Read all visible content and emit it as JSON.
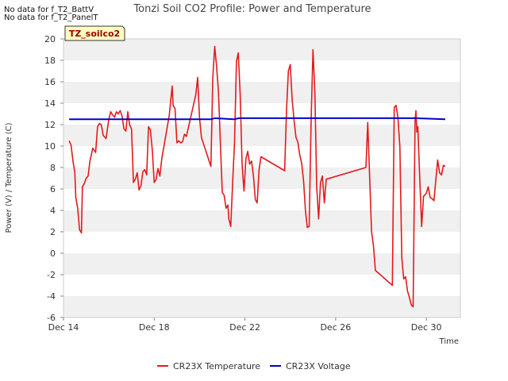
{
  "no_data_notes": [
    "No data for f_T2_BattV",
    "No data for f_T2_PanelT"
  ],
  "site_badge": "TZ_soilco2",
  "colors": {
    "temperature": "#e41a1c",
    "voltage": "#0000cc",
    "band": "#f0f0f0",
    "badge_bg": "#ffffc0",
    "badge_text": "#990000"
  },
  "chart_data": {
    "type": "line",
    "title": "Tonzi Soil CO2 Profile: Power and Temperature",
    "xlabel": "Time",
    "ylabel": "Power (V) / Temperature (C)",
    "ylim": [
      -6,
      20
    ],
    "yticks": [
      -6,
      -4,
      -2,
      0,
      2,
      4,
      6,
      8,
      10,
      12,
      14,
      16,
      18,
      20
    ],
    "xlim": [
      "Dec 14",
      "Dec 31 12:00"
    ],
    "xticks": [
      "Dec 14",
      "Dec 18",
      "Dec 22",
      "Dec 26",
      "Dec 30"
    ],
    "grid": "horizontal alternating bands",
    "legend_position": "bottom",
    "series": [
      {
        "name": "CR23X Temperature",
        "color": "#e41a1c",
        "points": [
          [
            "Dec 14 06:00",
            10.5
          ],
          [
            "Dec 14 08:00",
            10.1
          ],
          [
            "Dec 14 10:00",
            8.6
          ],
          [
            "Dec 14 12:00",
            7.5
          ],
          [
            "Dec 14 13:00",
            5.2
          ],
          [
            "Dec 14 15:00",
            4.2
          ],
          [
            "Dec 14 17:00",
            2.2
          ],
          [
            "Dec 14 19:00",
            1.9
          ],
          [
            "Dec 14 20:00",
            6.2
          ],
          [
            "Dec 14 22:00",
            6.5
          ],
          [
            "Dec 15 00:00",
            7.0
          ],
          [
            "Dec 15 02:00",
            7.2
          ],
          [
            "Dec 15 04:00",
            8.6
          ],
          [
            "Dec 15 07:00",
            9.8
          ],
          [
            "Dec 15 10:00",
            9.4
          ],
          [
            "Dec 15 12:00",
            11.8
          ],
          [
            "Dec 15 14:00",
            12.1
          ],
          [
            "Dec 15 16:00",
            12.0
          ],
          [
            "Dec 15 18:00",
            11.0
          ],
          [
            "Dec 15 21:00",
            10.7
          ],
          [
            "Dec 16 00:00",
            12.5
          ],
          [
            "Dec 16 02:00",
            13.2
          ],
          [
            "Dec 16 04:00",
            12.9
          ],
          [
            "Dec 16 06:00",
            12.7
          ],
          [
            "Dec 16 08:00",
            13.2
          ],
          [
            "Dec 16 10:00",
            13.0
          ],
          [
            "Dec 16 12:00",
            13.3
          ],
          [
            "Dec 16 14:00",
            12.8
          ],
          [
            "Dec 16 16:00",
            11.6
          ],
          [
            "Dec 16 18:00",
            11.4
          ],
          [
            "Dec 16 20:00",
            13.2
          ],
          [
            "Dec 16 22:00",
            12.0
          ],
          [
            "Dec 17 00:00",
            11.6
          ],
          [
            "Dec 17 02:00",
            6.6
          ],
          [
            "Dec 17 04:00",
            6.9
          ],
          [
            "Dec 17 06:00",
            7.5
          ],
          [
            "Dec 17 08:00",
            5.9
          ],
          [
            "Dec 17 10:00",
            6.3
          ],
          [
            "Dec 17 12:00",
            7.6
          ],
          [
            "Dec 17 14:00",
            7.8
          ],
          [
            "Dec 17 16:00",
            7.3
          ],
          [
            "Dec 17 18:00",
            11.8
          ],
          [
            "Dec 17 20:00",
            11.5
          ],
          [
            "Dec 17 22:00",
            9.6
          ],
          [
            "Dec 18 00:00",
            6.6
          ],
          [
            "Dec 18 02:00",
            6.9
          ],
          [
            "Dec 18 04:00",
            7.9
          ],
          [
            "Dec 18 06:00",
            7.2
          ],
          [
            "Dec 18 08:00",
            8.8
          ],
          [
            "Dec 18 16:00",
            12.9
          ],
          [
            "Dec 18 19:00",
            15.6
          ],
          [
            "Dec 18 20:00",
            13.8
          ],
          [
            "Dec 18 22:00",
            13.5
          ],
          [
            "Dec 19 00:00",
            10.3
          ],
          [
            "Dec 19 02:00",
            10.5
          ],
          [
            "Dec 19 04:00",
            10.3
          ],
          [
            "Dec 19 06:00",
            10.4
          ],
          [
            "Dec 19 08:00",
            11.1
          ],
          [
            "Dec 19 10:00",
            10.9
          ],
          [
            "Dec 19 20:00",
            14.8
          ],
          [
            "Dec 19 22:00",
            16.4
          ],
          [
            "Dec 20 00:00",
            12.6
          ],
          [
            "Dec 20 02:00",
            10.8
          ],
          [
            "Dec 20 12:00",
            8.1
          ],
          [
            "Dec 20 14:00",
            16.4
          ],
          [
            "Dec 20 16:00",
            19.3
          ],
          [
            "Dec 20 18:00",
            17.4
          ],
          [
            "Dec 20 20:00",
            15.1
          ],
          [
            "Dec 21 00:00",
            5.7
          ],
          [
            "Dec 21 02:00",
            5.4
          ],
          [
            "Dec 21 04:00",
            4.2
          ],
          [
            "Dec 21 06:00",
            4.5
          ],
          [
            "Dec 21 07:00",
            3.2
          ],
          [
            "Dec 21 09:00",
            2.5
          ],
          [
            "Dec 21 11:00",
            6.6
          ],
          [
            "Dec 21 13:00",
            10.4
          ],
          [
            "Dec 21 15:00",
            17.9
          ],
          [
            "Dec 21 17:00",
            18.7
          ],
          [
            "Dec 21 19:00",
            14.8
          ],
          [
            "Dec 21 21:00",
            8.3
          ],
          [
            "Dec 21 23:00",
            5.8
          ],
          [
            "Dec 22 01:00",
            8.8
          ],
          [
            "Dec 22 03:00",
            9.5
          ],
          [
            "Dec 22 05:00",
            8.3
          ],
          [
            "Dec 22 07:00",
            8.6
          ],
          [
            "Dec 22 09:00",
            7.2
          ],
          [
            "Dec 22 11:00",
            5.0
          ],
          [
            "Dec 22 13:00",
            4.7
          ],
          [
            "Dec 22 15:00",
            7.8
          ],
          [
            "Dec 22 17:00",
            9.0
          ],
          [
            "Dec 23 18:00",
            7.7
          ],
          [
            "Dec 23 20:00",
            13.4
          ],
          [
            "Dec 23 22:00",
            17.0
          ],
          [
            "Dec 24 00:00",
            17.6
          ],
          [
            "Dec 24 02:00",
            14.3
          ],
          [
            "Dec 24 04:00",
            12.4
          ],
          [
            "Dec 24 06:00",
            10.8
          ],
          [
            "Dec 24 08:00",
            10.4
          ],
          [
            "Dec 24 10:00",
            9.2
          ],
          [
            "Dec 24 12:00",
            8.4
          ],
          [
            "Dec 24 14:00",
            6.8
          ],
          [
            "Dec 24 16:00",
            4.0
          ],
          [
            "Dec 24 18:00",
            2.4
          ],
          [
            "Dec 24 20:00",
            2.5
          ],
          [
            "Dec 24 22:00",
            12.2
          ],
          [
            "Dec 25 00:00",
            19.0
          ],
          [
            "Dec 25 02:00",
            15.0
          ],
          [
            "Dec 25 04:00",
            6.2
          ],
          [
            "Dec 25 06:00",
            3.2
          ],
          [
            "Dec 25 08:00",
            6.6
          ],
          [
            "Dec 25 10:00",
            7.2
          ],
          [
            "Dec 25 12:00",
            4.7
          ],
          [
            "Dec 25 14:00",
            6.9
          ],
          [
            "Dec 27 08:00",
            8.0
          ],
          [
            "Dec 27 10:00",
            12.2
          ],
          [
            "Dec 27 14:00",
            2.0
          ],
          [
            "Dec 27 16:00",
            0.7
          ],
          [
            "Dec 27 18:00",
            -1.6
          ],
          [
            "Dec 28 12:00",
            -3.0
          ],
          [
            "Dec 28 14:00",
            13.6
          ],
          [
            "Dec 28 16:00",
            13.8
          ],
          [
            "Dec 28 18:00",
            12.6
          ],
          [
            "Dec 28 20:00",
            9.9
          ],
          [
            "Dec 28 22:00",
            -0.4
          ],
          [
            "Dec 29 00:00",
            -2.4
          ],
          [
            "Dec 29 02:00",
            -2.2
          ],
          [
            "Dec 29 04:00",
            -3.5
          ],
          [
            "Dec 29 06:00",
            -4.1
          ],
          [
            "Dec 29 08:00",
            -4.8
          ],
          [
            "Dec 29 10:00",
            -5.0
          ],
          [
            "Dec 29 12:00",
            12.3
          ],
          [
            "Dec 29 13:00",
            13.3
          ],
          [
            "Dec 29 14:00",
            11.3
          ],
          [
            "Dec 29 15:00",
            11.8
          ],
          [
            "Dec 29 17:00",
            7.0
          ],
          [
            "Dec 29 19:00",
            2.5
          ],
          [
            "Dec 29 21:00",
            5.3
          ],
          [
            "Dec 30 00:00",
            5.6
          ],
          [
            "Dec 30 02:00",
            6.2
          ],
          [
            "Dec 30 04:00",
            5.2
          ],
          [
            "Dec 30 06:00",
            5.1
          ],
          [
            "Dec 30 08:00",
            4.9
          ],
          [
            "Dec 30 12:00",
            8.7
          ],
          [
            "Dec 30 14:00",
            7.5
          ],
          [
            "Dec 30 16:00",
            7.3
          ],
          [
            "Dec 30 18:00",
            8.2
          ],
          [
            "Dec 30 20:00",
            8.1
          ]
        ]
      },
      {
        "name": "CR23X Voltage",
        "color": "#0000cc",
        "points": [
          [
            "Dec 14 06:00",
            12.5
          ],
          [
            "Dec 20 12:00",
            12.5
          ],
          [
            "Dec 20 16:00",
            12.6
          ],
          [
            "Dec 21 12:00",
            12.5
          ],
          [
            "Dec 21 18:00",
            12.6
          ],
          [
            "Dec 24 00:00",
            12.6
          ],
          [
            "Dec 25 00:00",
            12.6
          ],
          [
            "Dec 28 14:00",
            12.6
          ],
          [
            "Dec 29 12:00",
            12.6
          ],
          [
            "Dec 30 20:00",
            12.5
          ]
        ]
      }
    ]
  }
}
